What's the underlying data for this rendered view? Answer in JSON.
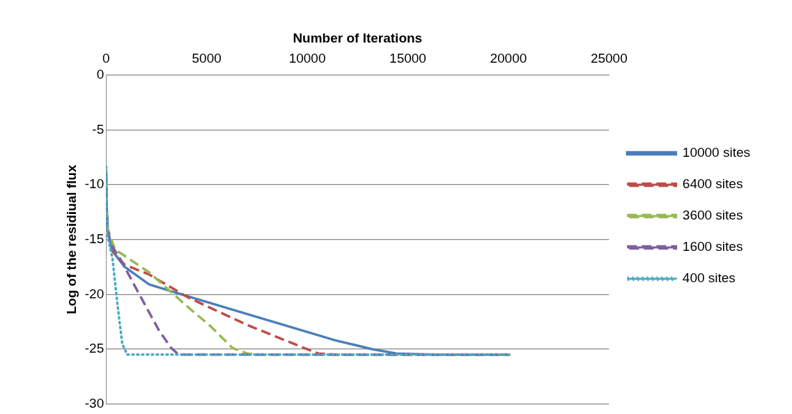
{
  "chart_data": {
    "type": "line",
    "xlabel": "Number of Iterations",
    "ylabel": "Log of the residiual flux",
    "xlim": [
      0,
      25000
    ],
    "xticks": [
      0,
      5000,
      10000,
      15000,
      20000,
      25000
    ],
    "ylim": [
      -30,
      0
    ],
    "yticks": [
      0,
      -5,
      -10,
      -15,
      -20,
      -25,
      -30
    ],
    "grid": "y",
    "legend": "right",
    "marker": "none",
    "series": [
      {
        "name": "10000 sites",
        "color": "#4a7ebb",
        "line_style": "solid",
        "x": [
          0,
          30,
          80,
          300,
          925,
          2144,
          4094,
          7018,
          9576,
          11403,
          13231,
          14437,
          16264,
          20000
        ],
        "values": [
          -8.3,
          -12,
          -14,
          -16,
          -17.5,
          -19.1,
          -20.2,
          -21.8,
          -23.2,
          -24.2,
          -25,
          -25.4,
          -25.5,
          -25.5
        ]
      },
      {
        "name": "6400 sites",
        "color": "#be4b48",
        "line_style": "dashed",
        "x": [
          300,
          925,
          2144,
          4094,
          7018,
          9576,
          10550,
          11403,
          20100
        ],
        "values": [
          -16,
          -17.3,
          -18.2,
          -20.3,
          -22.8,
          -24.7,
          -25.4,
          -25.5,
          -25.5
        ]
      },
      {
        "name": "3600 sites",
        "color": "#98b954",
        "line_style": "dashed",
        "x": [
          0,
          30,
          80,
          439,
          2144,
          4094,
          5190,
          6286,
          7018,
          7500,
          20100
        ],
        "values": [
          -8.3,
          -12,
          -14,
          -15.9,
          -18,
          -21.2,
          -22.9,
          -24.9,
          -25.4,
          -25.5,
          -25.5
        ]
      },
      {
        "name": "1600 sites",
        "color": "#7d60a0",
        "line_style": "dashed",
        "x": [
          0,
          30,
          80,
          195,
          683,
          1535,
          2632,
          3241,
          3607,
          20000
        ],
        "values": [
          -8.3,
          -12,
          -14,
          -15.3,
          -16.7,
          -19.6,
          -23.3,
          -24.9,
          -25.5,
          -25.5
        ]
      },
      {
        "name": "400 sites",
        "color": "#46aac5",
        "line_style": "dotted",
        "x": [
          0,
          30,
          73,
          317,
          560,
          804,
          1048,
          20000
        ],
        "values": [
          -8.3,
          -12,
          -14.7,
          -16.7,
          -20.8,
          -24.5,
          -25.5,
          -25.5
        ]
      }
    ]
  }
}
